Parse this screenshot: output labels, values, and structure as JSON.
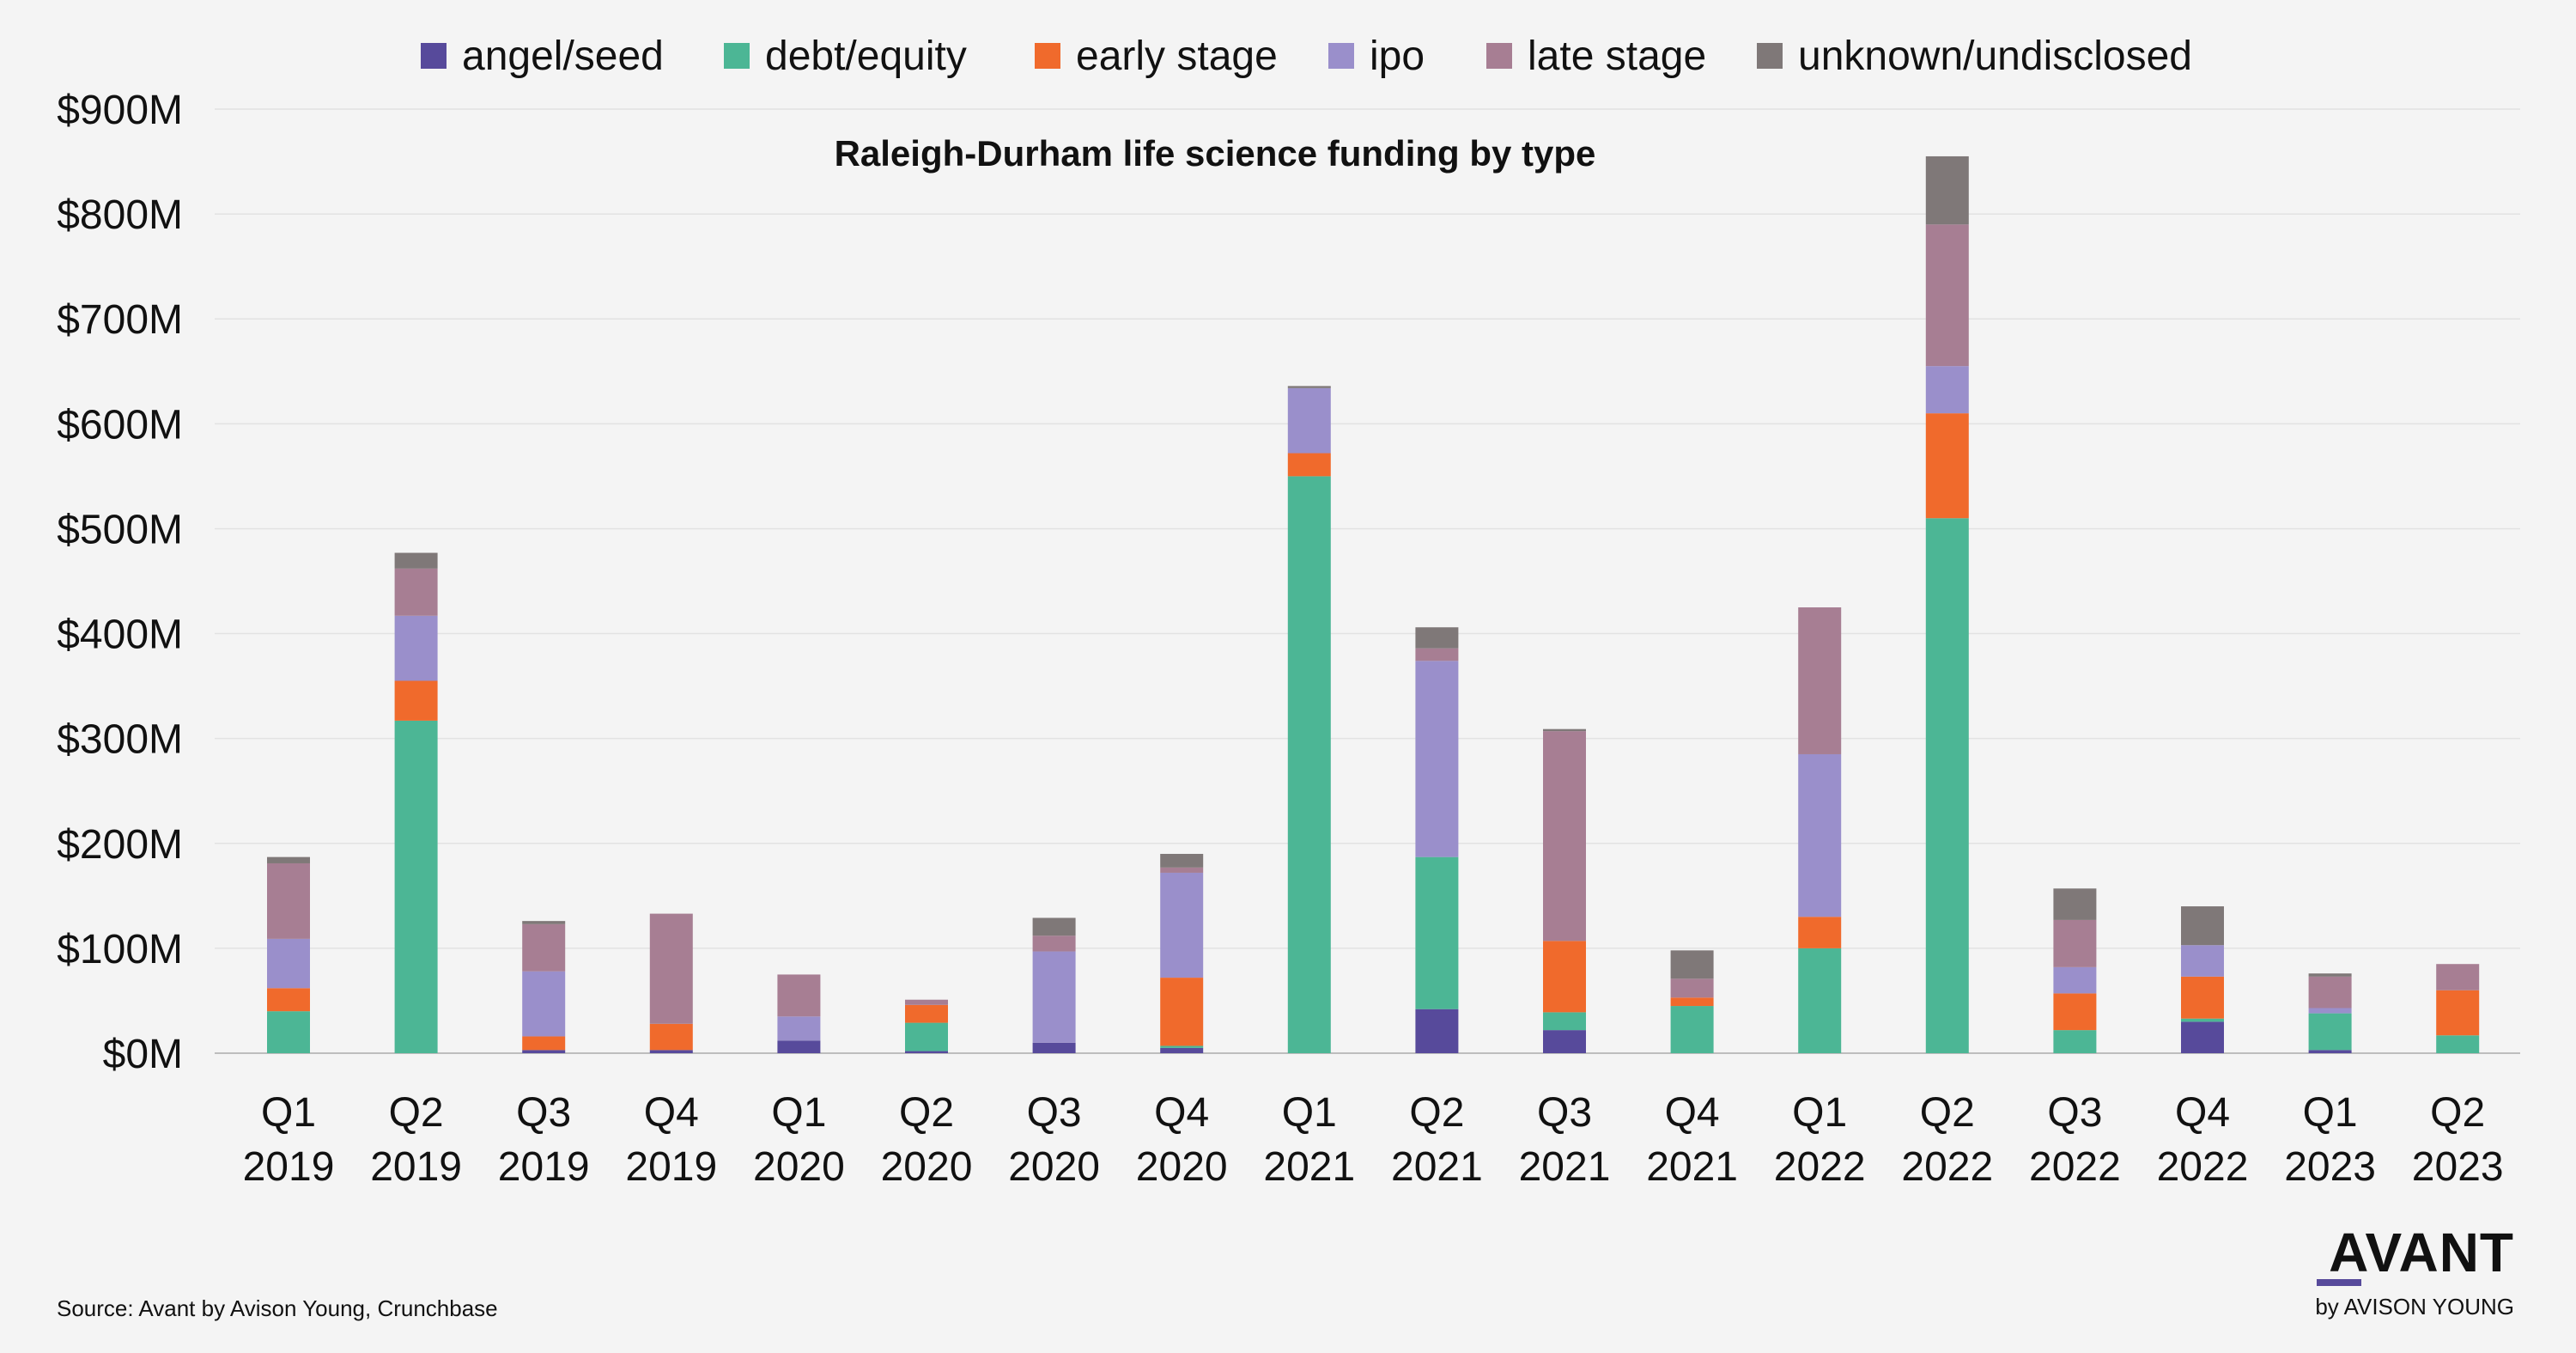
{
  "chart_data": {
    "type": "bar",
    "stacked": true,
    "title": "Raleigh-Durham life science funding by type",
    "xlabel": "",
    "ylabel": "",
    "ylim": [
      0,
      900
    ],
    "yticks": [
      "$0M",
      "$100M",
      "$200M",
      "$300M",
      "$400M",
      "$500M",
      "$600M",
      "$700M",
      "$800M",
      "$900M"
    ],
    "ytick_values": [
      0,
      100,
      200,
      300,
      400,
      500,
      600,
      700,
      800,
      900
    ],
    "categories": [
      [
        "Q1",
        "2019"
      ],
      [
        "Q2",
        "2019"
      ],
      [
        "Q3",
        "2019"
      ],
      [
        "Q4",
        "2019"
      ],
      [
        "Q1",
        "2020"
      ],
      [
        "Q2",
        "2020"
      ],
      [
        "Q3",
        "2020"
      ],
      [
        "Q4",
        "2020"
      ],
      [
        "Q1",
        "2021"
      ],
      [
        "Q2",
        "2021"
      ],
      [
        "Q3",
        "2021"
      ],
      [
        "Q4",
        "2021"
      ],
      [
        "Q1",
        "2022"
      ],
      [
        "Q2",
        "2022"
      ],
      [
        "Q3",
        "2022"
      ],
      [
        "Q4",
        "2022"
      ],
      [
        "Q1",
        "2023"
      ],
      [
        "Q2",
        "2023"
      ]
    ],
    "grid": true,
    "legend_position": "top",
    "series": [
      {
        "name": "angel/seed",
        "color": "#574a9b",
        "values": [
          0,
          0,
          3,
          3,
          12,
          2,
          10,
          5,
          0,
          42,
          22,
          0,
          0,
          0,
          0,
          30,
          3,
          0
        ]
      },
      {
        "name": "debt/equity",
        "color": "#4cb695",
        "values": [
          40,
          317,
          0,
          0,
          0,
          27,
          0,
          2,
          550,
          145,
          17,
          45,
          100,
          510,
          22,
          3,
          35,
          17
        ]
      },
      {
        "name": "early stage",
        "color": "#f06a2c",
        "values": [
          22,
          38,
          13,
          25,
          0,
          17,
          0,
          65,
          22,
          0,
          68,
          8,
          30,
          100,
          35,
          40,
          0,
          43
        ]
      },
      {
        "name": "ipo",
        "color": "#9a8fcb",
        "values": [
          47,
          62,
          62,
          0,
          23,
          0,
          87,
          100,
          62,
          187,
          0,
          0,
          155,
          45,
          25,
          30,
          5,
          0
        ]
      },
      {
        "name": "late stage",
        "color": "#a77e93",
        "values": [
          72,
          45,
          45,
          105,
          40,
          5,
          15,
          5,
          0,
          12,
          200,
          18,
          140,
          135,
          45,
          0,
          30,
          25
        ]
      },
      {
        "name": "unknown/undisclosed",
        "color": "#7f7878",
        "values": [
          6,
          15,
          3,
          0,
          0,
          0,
          17,
          13,
          2,
          20,
          2,
          27,
          0,
          65,
          30,
          37,
          3,
          0
        ]
      }
    ],
    "source": "Source: Avant by Avison Young, Crunchbase"
  },
  "branding": {
    "logo_main": "AVANT",
    "logo_sub": "by AVISON YOUNG",
    "accent_color": "#574a9b"
  }
}
